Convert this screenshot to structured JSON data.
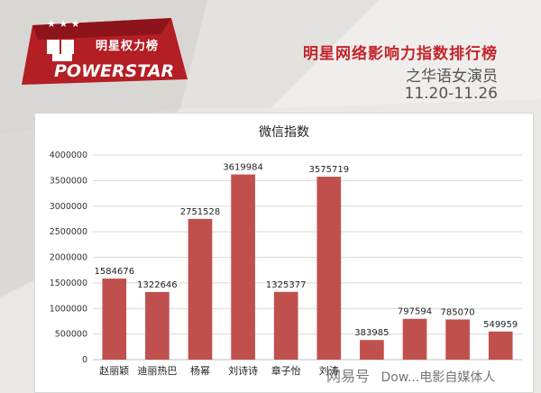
{
  "header": {
    "logo_cn": "明星权力榜",
    "logo_brand": "POWERSTAR",
    "title": "明星网络影响力指数排行榜",
    "subtitle": "之华语女演员",
    "date_range": "11.20-11.26"
  },
  "watermark": {
    "site": "网易号",
    "text": "Dow...电影自媒体人"
  },
  "colors": {
    "accent": "#c4242b",
    "bar": "#c0504d",
    "background": "#e9e8e6"
  },
  "chart_data": {
    "type": "bar",
    "title": "微信指数",
    "categories": [
      "赵丽颖",
      "迪丽热巴",
      "杨幂",
      "刘诗诗",
      "章子怡",
      "刘涛",
      "",
      "",
      "",
      ""
    ],
    "values": [
      1584676,
      1322646,
      2751528,
      3619984,
      1325377,
      3575719,
      383985,
      797594,
      785070,
      549959
    ],
    "value_labels": [
      "1584676",
      "1322646",
      "2751528",
      "3619984",
      "1325377",
      "3575719",
      "383985",
      "797594",
      "785070",
      "549959"
    ],
    "y_ticks": [
      "0",
      "500000",
      "1000000",
      "1500000",
      "2000000",
      "2500000",
      "3000000",
      "3500000",
      "4000000"
    ],
    "ylim": [
      0,
      4000000
    ],
    "grid": true,
    "legend": "none"
  }
}
